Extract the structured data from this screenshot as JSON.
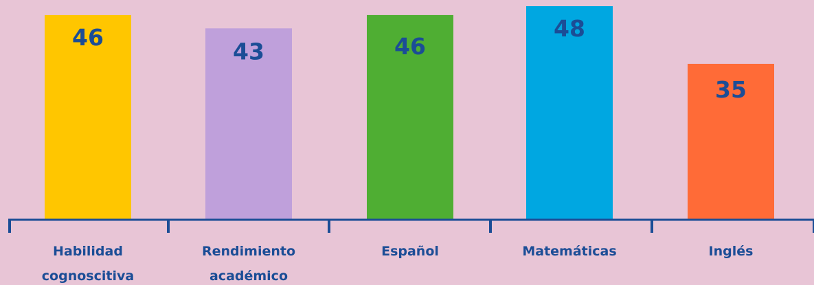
{
  "chart_data": {
    "type": "bar",
    "categories": [
      "Habilidad cognoscitiva",
      "Rendimiento académico",
      "Español",
      "Matemáticas",
      "Inglés"
    ],
    "category_lines": [
      [
        "Habilidad",
        "cognoscitiva"
      ],
      [
        "Rendimiento",
        "académico"
      ],
      [
        "Español"
      ],
      [
        "Matemáticas"
      ],
      [
        "Inglés"
      ]
    ],
    "values": [
      46,
      43,
      46,
      48,
      35
    ],
    "bar_colors": [
      "#FFC600",
      "#BFA0DB",
      "#4FAE33",
      "#00A7E1",
      "#FF6B37"
    ],
    "title": "",
    "xlabel": "",
    "ylabel": "",
    "ylim": [
      0,
      48
    ],
    "grid": false,
    "legend": "none"
  },
  "colors": {
    "background": "#E8C5D6",
    "axis": "#1B4D96",
    "label_text": "#1B4D96"
  }
}
